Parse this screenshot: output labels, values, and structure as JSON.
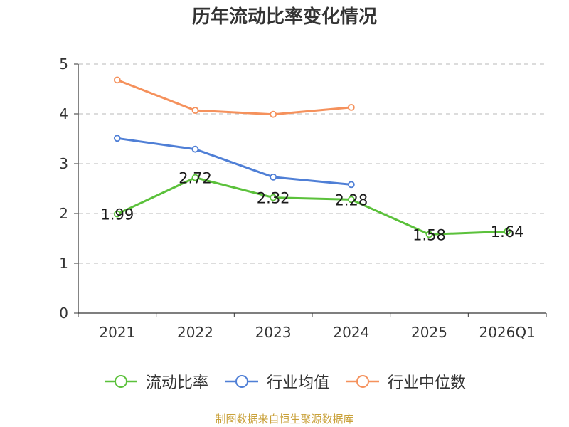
{
  "chart_data": {
    "type": "line",
    "title": "历年流动比率变化情况",
    "categories": [
      "2021",
      "2022",
      "2023",
      "2024",
      "2025",
      "2026Q1"
    ],
    "ylim": [
      0,
      5
    ],
    "yticks": [
      "0",
      "1",
      "2",
      "3",
      "4",
      "5"
    ],
    "grid": true,
    "legend_position": "bottom",
    "series": [
      {
        "name": "流动比率",
        "color": "#5bc13b",
        "values": [
          1.99,
          2.72,
          2.32,
          2.28,
          1.58,
          1.64
        ],
        "labels": [
          "1.99",
          "2.72",
          "2.32",
          "2.28",
          "1.58",
          "1.64"
        ]
      },
      {
        "name": "行业均值",
        "color": "#4f7fd6",
        "values": [
          3.51,
          3.29,
          2.73,
          2.58,
          null,
          null
        ]
      },
      {
        "name": "行业中位数",
        "color": "#f5915c",
        "values": [
          4.68,
          4.07,
          3.99,
          4.13,
          null,
          null
        ]
      }
    ]
  },
  "footer": {
    "source": "制图数据来自恒生聚源数据库"
  }
}
